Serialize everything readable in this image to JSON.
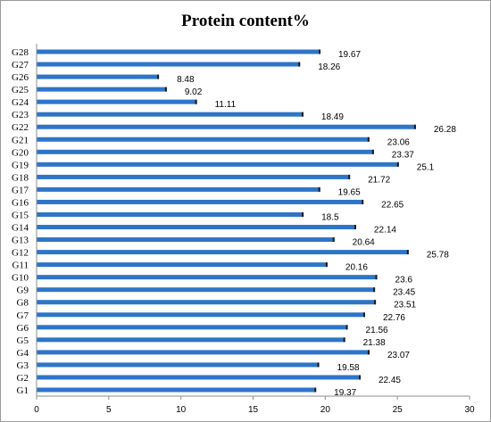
{
  "chart_data": {
    "type": "bar",
    "orientation": "horizontal",
    "title": "Protein content%",
    "xlabel": "",
    "ylabel": "",
    "categories": [
      "G1",
      "G2",
      "G3",
      "G4",
      "G5",
      "G6",
      "G7",
      "G8",
      "G9",
      "G10",
      "G11",
      "G12",
      "G13",
      "G14",
      "G15",
      "G16",
      "G17",
      "G18",
      "G19",
      "G20",
      "G21",
      "G22",
      "G23",
      "G24",
      "G25",
      "G26",
      "G27",
      "G28"
    ],
    "values": [
      19.37,
      22.45,
      19.58,
      23.07,
      21.38,
      21.56,
      22.76,
      23.51,
      23.45,
      23.6,
      20.16,
      25.78,
      20.64,
      22.14,
      18.5,
      22.65,
      19.65,
      21.72,
      25.1,
      23.37,
      23.06,
      26.28,
      18.49,
      11.11,
      9.02,
      8.48,
      18.26,
      19.67
    ],
    "value_labels": [
      "19.37",
      "22.45",
      "19.58",
      "23.07",
      "21.38",
      "21.56",
      "22.76",
      "23.51",
      "23.45",
      "23.6",
      "20.16",
      "25.78",
      "20.64",
      "22.14",
      "18.5",
      "22.65",
      "19.65",
      "21.72",
      "25.1",
      "23.37",
      "23.06",
      "26.28",
      "18.49",
      "11.11",
      "9.02",
      "8.48",
      "18.26",
      "19.67"
    ],
    "xlim": [
      0,
      30
    ],
    "xticks": [
      "0",
      "5",
      "10",
      "15",
      "20",
      "25",
      "30"
    ],
    "grid": false,
    "legend": "none",
    "bar_color": "#2e75c8",
    "bar_end_color": "#1a1a1a"
  }
}
